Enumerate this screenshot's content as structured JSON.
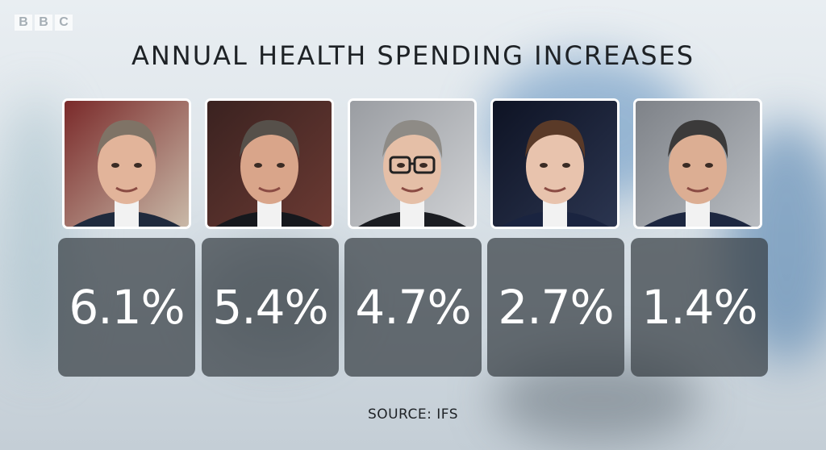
{
  "broadcaster": {
    "logo_letters": [
      "B",
      "B",
      "C"
    ]
  },
  "chart_data": {
    "type": "bar",
    "title": "ANNUAL HEALTH SPENDING INCREASES",
    "values": [
      6.1,
      5.4,
      4.7,
      2.7,
      1.4
    ],
    "value_labels": [
      "6.1%",
      "5.4%",
      "4.7%",
      "2.7%",
      "1.4%"
    ],
    "source": "SOURCE: IFS"
  },
  "colors": {
    "tile": "#373e44",
    "text": "#1e2226",
    "value_text": "#ffffff"
  }
}
